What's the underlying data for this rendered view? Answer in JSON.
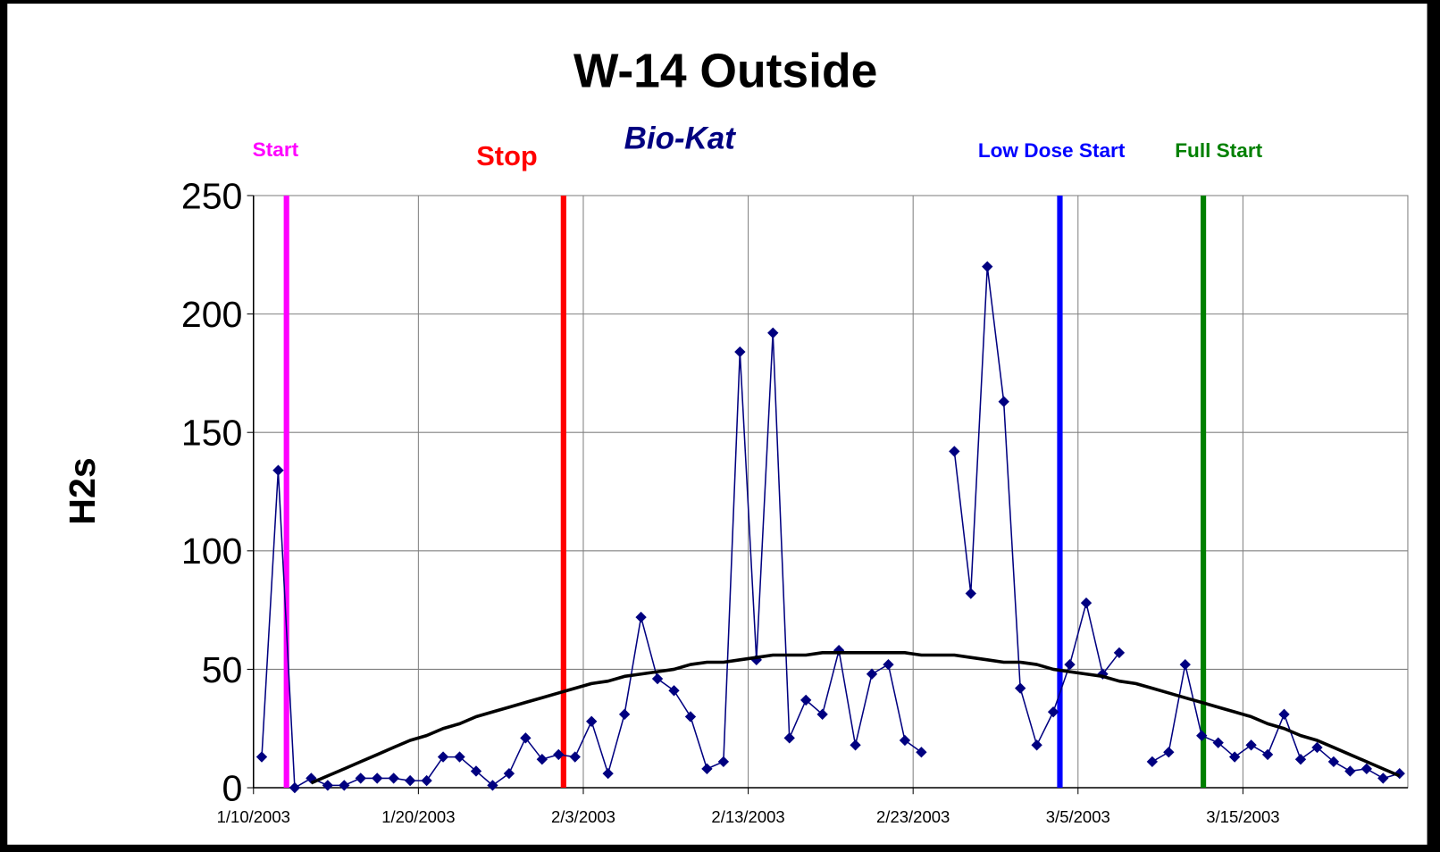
{
  "chart_data": {
    "type": "line",
    "title": "W-14 Outside",
    "subtitle": "Bio-Kat",
    "y_label": "H2s",
    "categories": [
      "1/10/2003",
      null,
      null,
      null,
      null,
      null,
      null,
      null,
      null,
      null,
      "1/20/2003",
      null,
      null,
      null,
      null,
      null,
      null,
      null,
      null,
      null,
      "2/3/2003",
      null,
      null,
      null,
      null,
      null,
      null,
      null,
      null,
      null,
      "2/13/2003",
      null,
      null,
      null,
      null,
      null,
      null,
      null,
      null,
      null,
      "2/23/2003",
      null,
      null,
      null,
      null,
      null,
      null,
      null,
      null,
      null,
      "3/5/2003",
      null,
      null,
      null,
      null,
      null,
      null,
      null,
      null,
      null,
      "3/15/2003",
      null,
      null,
      null,
      null,
      null,
      null,
      null,
      null,
      null
    ],
    "series": [
      {
        "color": "#000080",
        "marker": "diamond",
        "values": [
          13,
          134,
          0,
          4,
          1,
          1,
          4,
          4,
          4,
          3,
          3,
          13,
          13,
          7,
          1,
          6,
          21,
          12,
          14,
          13,
          28,
          6,
          31,
          72,
          46,
          41,
          30,
          8,
          11,
          184,
          54,
          192,
          21,
          37,
          31,
          58,
          18,
          48,
          52,
          20,
          15,
          null,
          142,
          82,
          220,
          163,
          42,
          18,
          32,
          52,
          78,
          48,
          57,
          null,
          11,
          15,
          52,
          22,
          19,
          13,
          18,
          14,
          31,
          12,
          17,
          11,
          7,
          8,
          4,
          6
        ]
      },
      {
        "color": "#000000",
        "values": [
          null,
          null,
          null,
          2,
          5,
          8,
          11,
          14,
          17,
          20,
          22,
          25,
          27,
          30,
          32,
          34,
          36,
          38,
          40,
          42,
          44,
          45,
          47,
          48,
          49,
          50,
          52,
          53,
          53,
          54,
          55,
          56,
          56,
          56,
          57,
          57,
          57,
          57,
          57,
          57,
          56,
          56,
          56,
          55,
          54,
          53,
          53,
          52,
          50,
          49,
          48,
          47,
          45,
          44,
          42,
          40,
          38,
          36,
          34,
          32,
          30,
          27,
          25,
          22,
          20,
          17,
          14,
          11,
          8,
          5
        ]
      }
    ],
    "events": [
      {
        "label": "Start",
        "color": "#ff00ff",
        "at": 2
      },
      {
        "label": "Stop",
        "color": "#ff0000",
        "at": 18.8
      },
      {
        "label": "Low Dose Start",
        "color": "#0000ff",
        "at": 48.9
      },
      {
        "label": "Full Start",
        "color": "#008000",
        "at": 57.6
      }
    ],
    "ylim": [
      0,
      250
    ],
    "yticks": [
      0,
      50,
      100,
      150,
      200,
      250
    ],
    "grid": true
  }
}
